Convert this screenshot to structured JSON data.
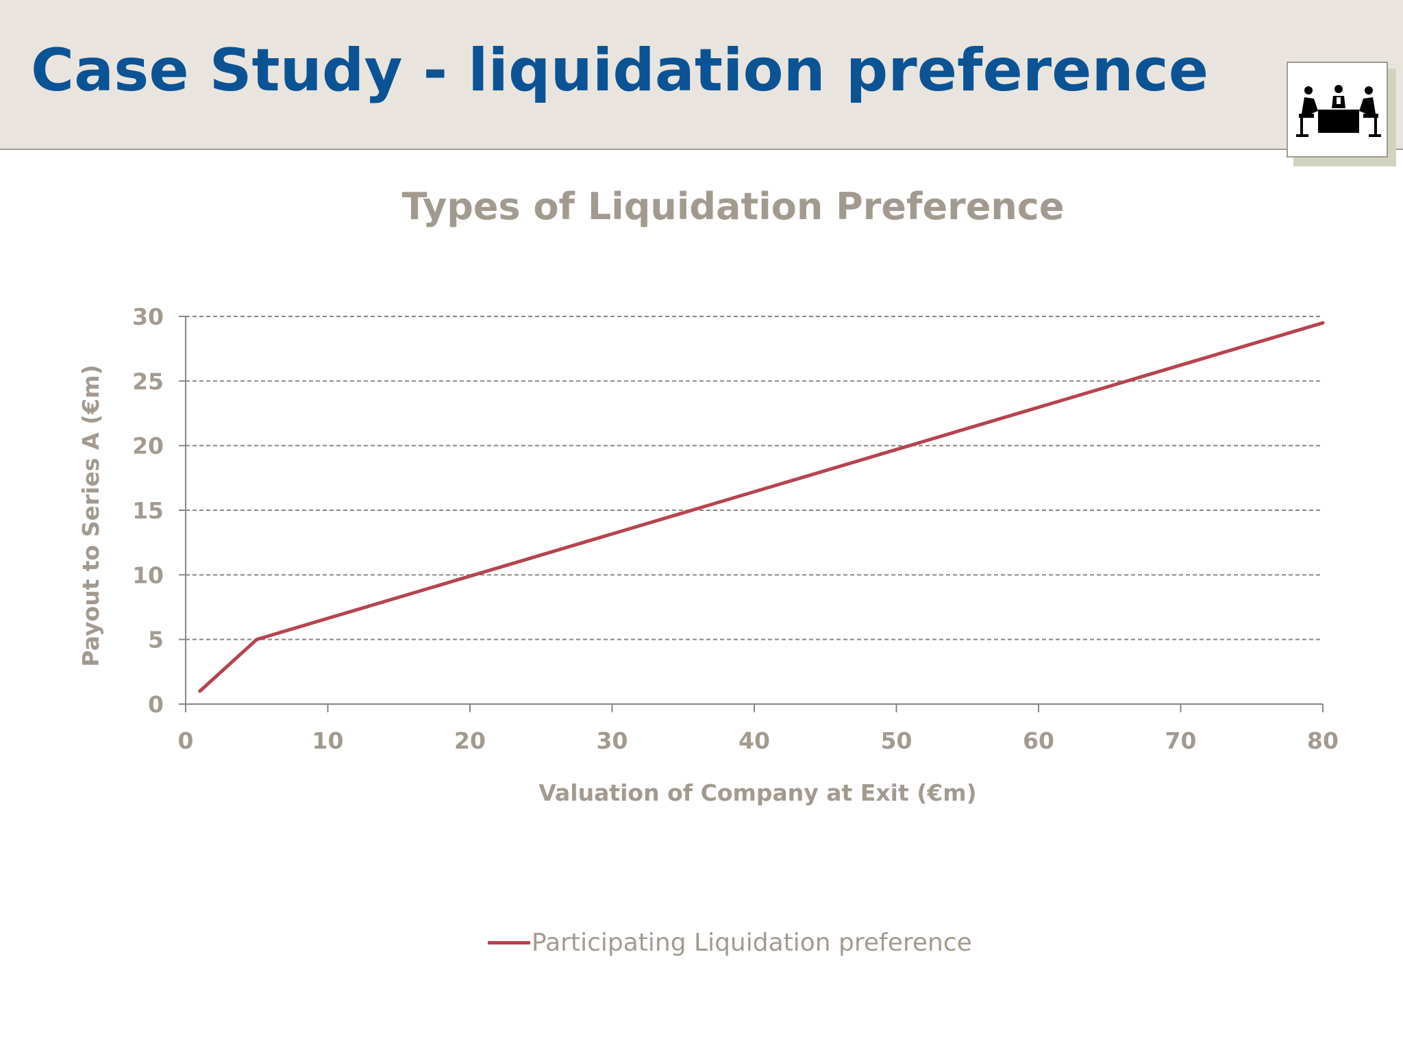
{
  "slide": {
    "title": "Case Study - liquidation preference",
    "icon": "meeting-table-icon"
  },
  "colors": {
    "title": "#0b5394",
    "header_band": "#e9e5de",
    "chart_text": "#a39a8f",
    "series_line": "#b5444f",
    "gridline": "#8a8580"
  },
  "chart_data": {
    "type": "line",
    "title": "Types of Liquidation Preference",
    "xlabel": "Valuation of Company at Exit (€m)",
    "ylabel": "Payout to Series A (€m)",
    "xlim": [
      0,
      80
    ],
    "ylim": [
      0,
      30
    ],
    "xticks": [
      0,
      10,
      20,
      30,
      40,
      50,
      60,
      70,
      80
    ],
    "yticks": [
      0,
      5,
      10,
      15,
      20,
      25,
      30
    ],
    "grid": "horizontal dashed",
    "legend_position": "bottom",
    "series": [
      {
        "name": "Participating Liquidation preference",
        "x": [
          1,
          5,
          80
        ],
        "y": [
          1,
          5,
          29.5
        ]
      }
    ]
  }
}
